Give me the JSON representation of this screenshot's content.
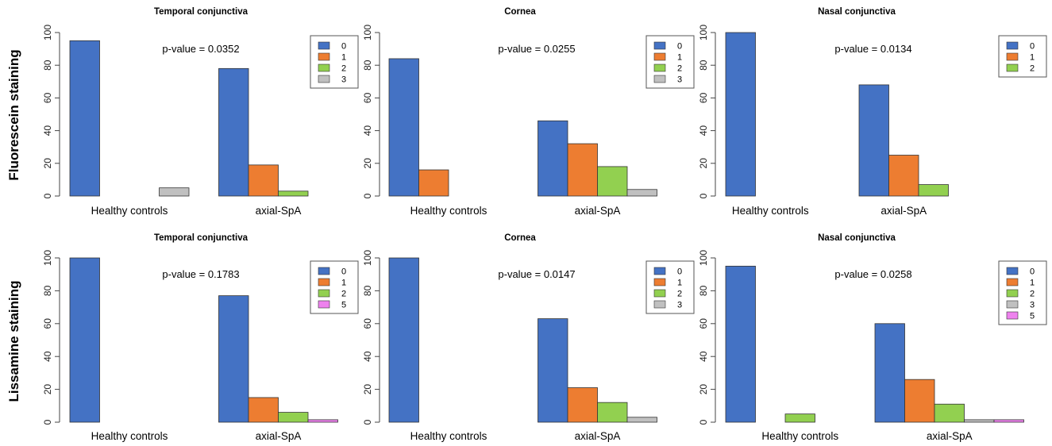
{
  "row_labels": [
    "Fluorescein staining",
    "Lissamine staining"
  ],
  "chart_data": [
    {
      "type": "bar",
      "row": 0,
      "col": 0,
      "title": "Temporal conjunctiva",
      "categories": [
        "Healthy controls",
        "axial-SpA"
      ],
      "p_value": "p-value = 0.0352",
      "ylim": [
        0,
        100
      ],
      "yticks": [
        "0",
        "20",
        "40",
        "60",
        "80",
        "100"
      ],
      "legend": [
        "0",
        "1",
        "2",
        "3"
      ],
      "series": [
        {
          "name": "0",
          "values": [
            95,
            78
          ]
        },
        {
          "name": "1",
          "values": [
            0,
            19
          ]
        },
        {
          "name": "2",
          "values": [
            0,
            3
          ]
        },
        {
          "name": "3",
          "values": [
            5,
            0
          ]
        }
      ]
    },
    {
      "type": "bar",
      "row": 0,
      "col": 1,
      "title": "Cornea",
      "categories": [
        "Healthy controls",
        "axial-SpA"
      ],
      "p_value": "p-value = 0.0255",
      "ylim": [
        0,
        100
      ],
      "yticks": [
        "0",
        "20",
        "40",
        "60",
        "80",
        "100"
      ],
      "legend": [
        "0",
        "1",
        "2",
        "3"
      ],
      "series": [
        {
          "name": "0",
          "values": [
            84,
            46
          ]
        },
        {
          "name": "1",
          "values": [
            16,
            32
          ]
        },
        {
          "name": "2",
          "values": [
            0,
            18
          ]
        },
        {
          "name": "3",
          "values": [
            0,
            4
          ]
        }
      ]
    },
    {
      "type": "bar",
      "row": 0,
      "col": 2,
      "title": "Nasal conjunctiva",
      "categories": [
        "Healthy controls",
        "axial-SpA"
      ],
      "p_value": "p-value = 0.0134",
      "ylim": [
        0,
        100
      ],
      "yticks": [
        "0",
        "20",
        "40",
        "60",
        "80",
        "100"
      ],
      "legend": [
        "0",
        "1",
        "2"
      ],
      "series": [
        {
          "name": "0",
          "values": [
            100,
            68
          ]
        },
        {
          "name": "1",
          "values": [
            0,
            25
          ]
        },
        {
          "name": "2",
          "values": [
            0,
            7
          ]
        }
      ]
    },
    {
      "type": "bar",
      "row": 1,
      "col": 0,
      "title": "Temporal conjunctiva",
      "categories": [
        "Healthy controls",
        "axial-SpA"
      ],
      "p_value": "p-value = 0.1783",
      "ylim": [
        0,
        100
      ],
      "yticks": [
        "0",
        "20",
        "40",
        "60",
        "80",
        "100"
      ],
      "legend": [
        "0",
        "1",
        "2",
        "5"
      ],
      "series": [
        {
          "name": "0",
          "values": [
            100,
            77
          ]
        },
        {
          "name": "1",
          "values": [
            0,
            15
          ]
        },
        {
          "name": "2",
          "values": [
            0,
            6
          ]
        },
        {
          "name": "5",
          "values": [
            0,
            1.5
          ]
        }
      ]
    },
    {
      "type": "bar",
      "row": 1,
      "col": 1,
      "title": "Cornea",
      "categories": [
        "Healthy controls",
        "axial-SpA"
      ],
      "p_value": "p-value = 0.0147",
      "ylim": [
        0,
        100
      ],
      "yticks": [
        "0",
        "20",
        "40",
        "60",
        "80",
        "100"
      ],
      "legend": [
        "0",
        "1",
        "2",
        "3"
      ],
      "series": [
        {
          "name": "0",
          "values": [
            100,
            63
          ]
        },
        {
          "name": "1",
          "values": [
            0,
            21
          ]
        },
        {
          "name": "2",
          "values": [
            0,
            12
          ]
        },
        {
          "name": "3",
          "values": [
            0,
            3
          ]
        }
      ]
    },
    {
      "type": "bar",
      "row": 1,
      "col": 2,
      "title": "Nasal conjunctiva",
      "categories": [
        "Healthy controls",
        "axial-SpA"
      ],
      "p_value": "p-value = 0.0258",
      "ylim": [
        0,
        100
      ],
      "yticks": [
        "0",
        "20",
        "40",
        "60",
        "80",
        "100"
      ],
      "legend": [
        "0",
        "1",
        "2",
        "3",
        "5"
      ],
      "series": [
        {
          "name": "0",
          "values": [
            95,
            60
          ]
        },
        {
          "name": "1",
          "values": [
            0,
            26
          ]
        },
        {
          "name": "2",
          "values": [
            5,
            11
          ]
        },
        {
          "name": "3",
          "values": [
            0,
            1.5
          ]
        },
        {
          "name": "5",
          "values": [
            0,
            1.5
          ]
        }
      ]
    }
  ],
  "colors": {
    "0": "#4472C4",
    "1": "#ED7D31",
    "2": "#92D050",
    "3": "#C0C0C0",
    "5": "#EE82EE",
    "axis": "#444444",
    "bar_stroke": "#333333"
  }
}
